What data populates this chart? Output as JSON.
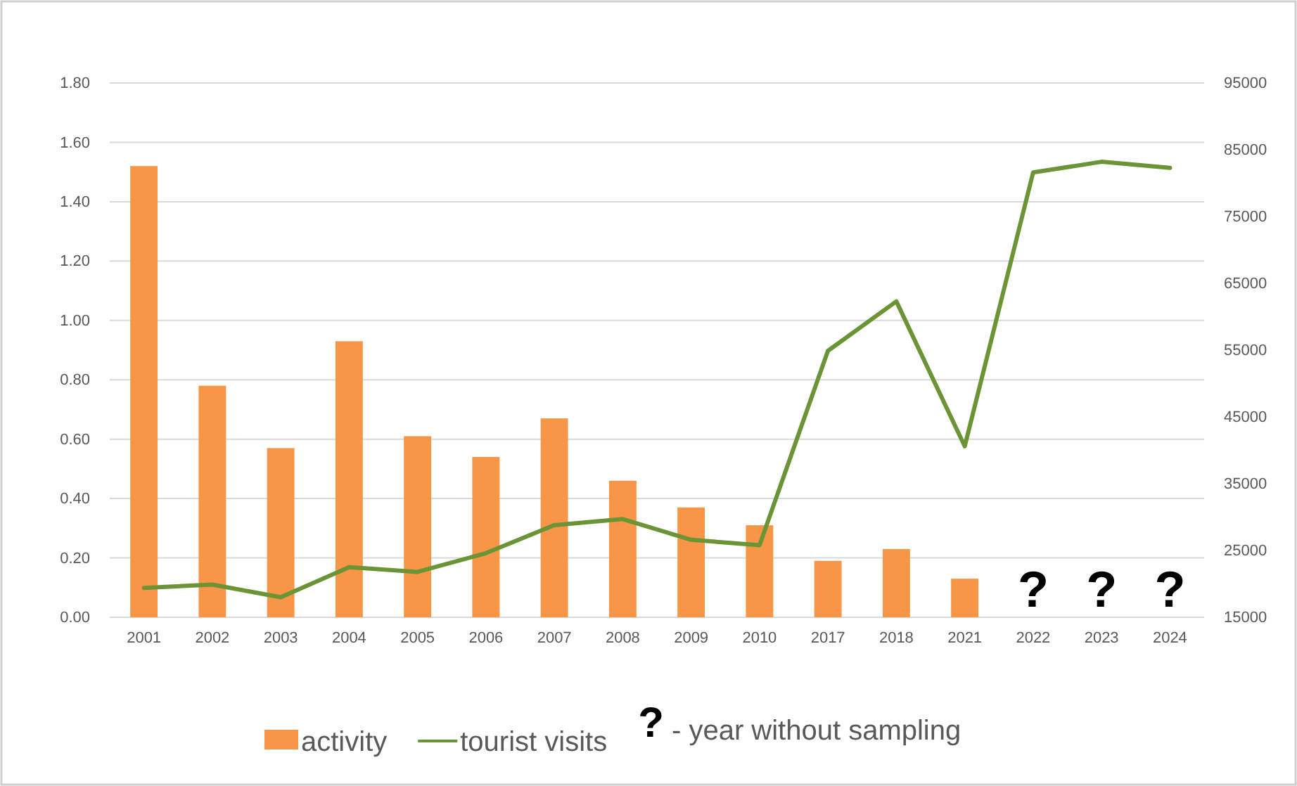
{
  "chart_data": {
    "type": "bar",
    "categories": [
      "2001",
      "2002",
      "2003",
      "2004",
      "2005",
      "2006",
      "2007",
      "2008",
      "2009",
      "2010",
      "2017",
      "2018",
      "2021",
      "2022",
      "2023",
      "2024"
    ],
    "series": [
      {
        "name": "activity",
        "color": "#f79646",
        "values": [
          1.52,
          0.78,
          0.57,
          0.93,
          0.61,
          0.54,
          0.67,
          0.46,
          0.37,
          0.31,
          0.19,
          0.23,
          0.13,
          null,
          null,
          null
        ]
      },
      {
        "name": "tourist visits",
        "type": "line",
        "axis": "y2",
        "color": "#6b9436",
        "values": [
          19400,
          19900,
          18000,
          22500,
          21800,
          24600,
          28800,
          29700,
          26600,
          25800,
          54900,
          62300,
          40600,
          81600,
          83200,
          82300
        ]
      }
    ],
    "ylim": [
      0,
      1.8
    ],
    "yticks": [
      {
        "value": 0,
        "label": "0.00"
      },
      {
        "value": 0.2,
        "label": "0.20"
      },
      {
        "value": 0.4,
        "label": "0.40"
      },
      {
        "value": 0.6,
        "label": "0.60"
      },
      {
        "value": 0.8,
        "label": "0.80"
      },
      {
        "value": 1.0,
        "label": "1.00"
      },
      {
        "value": 1.2,
        "label": "1.20"
      },
      {
        "value": 1.4,
        "label": "1.40"
      },
      {
        "value": 1.6,
        "label": "1.60"
      },
      {
        "value": 1.8,
        "label": "1.80"
      }
    ],
    "y2lim": [
      15000,
      95000
    ],
    "y2ticks": [
      15000,
      25000,
      35000,
      45000,
      55000,
      65000,
      75000,
      85000,
      95000
    ],
    "grid": "y",
    "legend": "bottom",
    "line_style": "solid",
    "marker": "none",
    "annotations": [
      "?",
      "?",
      "?",
      "? - year without sampling"
    ]
  }
}
